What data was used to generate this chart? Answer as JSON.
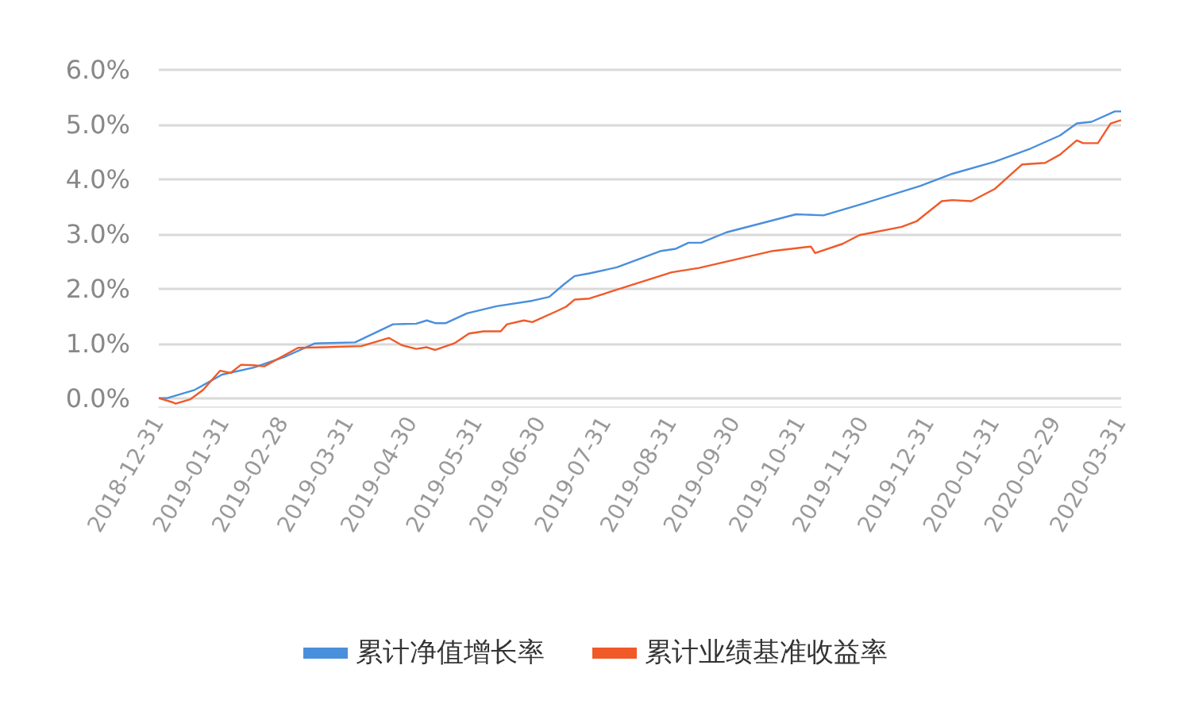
{
  "chart_data": {
    "type": "line",
    "xlim": [
      "2018-12-31",
      "2020-03-31"
    ],
    "xticks": [
      "2018-12-31",
      "2019-01-31",
      "2019-02-28",
      "2019-03-31",
      "2019-04-30",
      "2019-05-31",
      "2019-06-30",
      "2019-07-31",
      "2019-08-31",
      "2019-09-30",
      "2019-10-31",
      "2019-11-30",
      "2019-12-31",
      "2020-01-31",
      "2020-02-29",
      "2020-03-31"
    ],
    "ylim": [
      -0.15,
      6
    ],
    "yticks": [
      {
        "value": 0,
        "label": "0.0%"
      },
      {
        "value": 1,
        "label": "1.0%"
      },
      {
        "value": 2,
        "label": "2.0%"
      },
      {
        "value": 3,
        "label": "3.0%"
      },
      {
        "value": 4,
        "label": "4.0%"
      },
      {
        "value": 5,
        "label": "5.0%"
      },
      {
        "value": 6,
        "label": "6.0%"
      }
    ],
    "grid": "y",
    "legend": "bottom",
    "marker": "none",
    "line_style": "solid",
    "series": [
      {
        "name": "累计净值增长率",
        "color": "#4a8fdc",
        "x": [
          "2018-12-31",
          "2019-01-04",
          "2019-01-17",
          "2019-01-30",
          "2019-02-14",
          "2019-03-01",
          "2019-03-15",
          "2019-04-03",
          "2019-04-21",
          "2019-05-02",
          "2019-05-07",
          "2019-05-11",
          "2019-05-16",
          "2019-05-26",
          "2019-06-09",
          "2019-06-26",
          "2019-07-04",
          "2019-07-11",
          "2019-07-16",
          "2019-07-23",
          "2019-08-05",
          "2019-08-26",
          "2019-09-02",
          "2019-09-08",
          "2019-09-14",
          "2019-09-26",
          "2019-10-29",
          "2019-11-11",
          "2019-12-01",
          "2019-12-27",
          "2020-01-11",
          "2020-01-31",
          "2020-02-17",
          "2020-03-02",
          "2020-03-10",
          "2020-03-17",
          "2020-03-28",
          "2020-03-31"
        ],
        "values": [
          0,
          0,
          0.15,
          0.43,
          0.56,
          0.76,
          1.0,
          1.02,
          1.35,
          1.36,
          1.42,
          1.37,
          1.37,
          1.55,
          1.68,
          1.78,
          1.85,
          2.08,
          2.23,
          2.28,
          2.39,
          2.69,
          2.73,
          2.84,
          2.84,
          3.03,
          3.36,
          3.34,
          3.57,
          3.88,
          4.1,
          4.32,
          4.56,
          4.8,
          5.02,
          5.05,
          5.24,
          5.24
        ]
      },
      {
        "name": "累计业绩基准收益率",
        "color": "#f05a28",
        "x": [
          "2018-12-31",
          "2019-01-06",
          "2019-01-08",
          "2019-01-15",
          "2019-01-21",
          "2019-01-29",
          "2019-02-03",
          "2019-02-08",
          "2019-02-14",
          "2019-02-19",
          "2019-03-07",
          "2019-03-20",
          "2019-04-06",
          "2019-04-19",
          "2019-04-25",
          "2019-05-02",
          "2019-05-07",
          "2019-05-11",
          "2019-05-20",
          "2019-05-27",
          "2019-06-03",
          "2019-06-11",
          "2019-06-14",
          "2019-06-22",
          "2019-06-26",
          "2019-07-07",
          "2019-07-12",
          "2019-07-16",
          "2019-07-23",
          "2019-08-31",
          "2019-09-13",
          "2019-10-18",
          "2019-11-05",
          "2019-11-07",
          "2019-11-20",
          "2019-11-28",
          "2019-12-18",
          "2019-12-25",
          "2020-01-06",
          "2020-01-11",
          "2020-01-20",
          "2020-01-31",
          "2020-02-13",
          "2020-02-24",
          "2020-03-02",
          "2020-03-10",
          "2020-03-13",
          "2020-03-20",
          "2020-03-26",
          "2020-03-31"
        ],
        "values": [
          0,
          -0.07,
          -0.1,
          -0.02,
          0.15,
          0.5,
          0.46,
          0.61,
          0.6,
          0.58,
          0.92,
          0.93,
          0.95,
          1.1,
          0.97,
          0.9,
          0.93,
          0.88,
          1.0,
          1.18,
          1.22,
          1.22,
          1.35,
          1.42,
          1.39,
          1.58,
          1.67,
          1.8,
          1.82,
          2.3,
          2.38,
          2.69,
          2.77,
          2.65,
          2.82,
          2.98,
          3.13,
          3.23,
          3.6,
          3.62,
          3.6,
          3.82,
          4.27,
          4.3,
          4.45,
          4.71,
          4.66,
          4.66,
          5.02,
          5.08
        ]
      }
    ]
  }
}
